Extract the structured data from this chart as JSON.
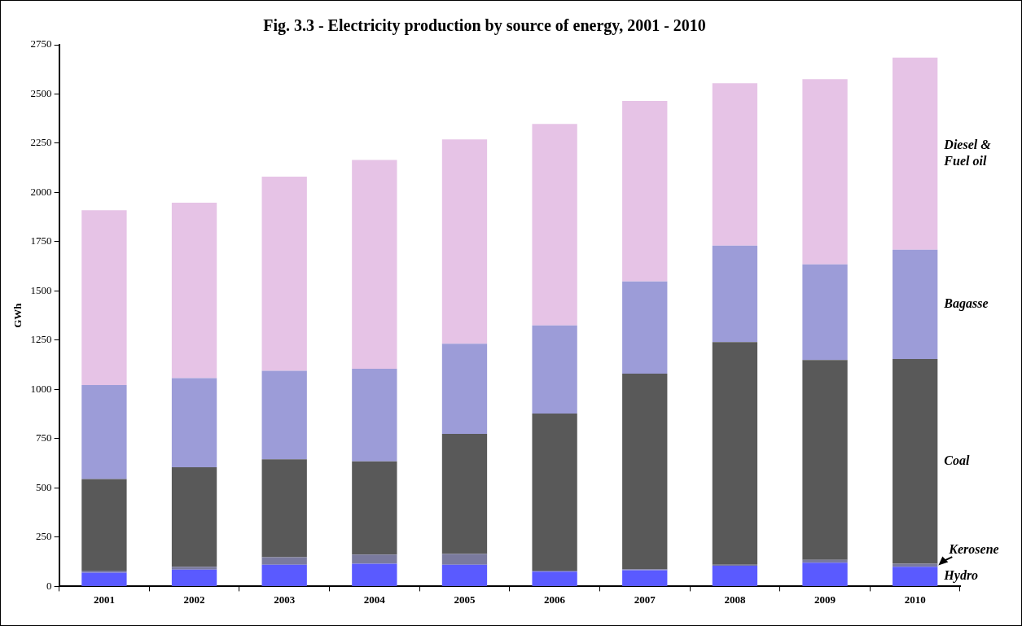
{
  "chart_data": {
    "type": "bar",
    "title": "Fig. 3.3 - Electricity production by source of energy, 2001 - 2010",
    "ylabel": "GWh",
    "categories": [
      "2001",
      "2002",
      "2003",
      "2004",
      "2005",
      "2006",
      "2007",
      "2008",
      "2009",
      "2010"
    ],
    "stacked": true,
    "grid": false,
    "legend": false,
    "ylim": [
      0,
      2750
    ],
    "yticks": [
      0,
      250,
      500,
      750,
      1000,
      1250,
      1500,
      1750,
      2000,
      2250,
      2500,
      2750
    ],
    "series": [
      {
        "name": "Hydro",
        "color": "#5a5aff",
        "values": [
          70,
          85,
          110,
          115,
          110,
          75,
          82,
          105,
          120,
          100
        ]
      },
      {
        "name": "Kerosene",
        "color": "#7a7a9e",
        "values": [
          10,
          15,
          38,
          47,
          55,
          5,
          5,
          5,
          15,
          15
        ]
      },
      {
        "name": "Coal",
        "color": "#595959",
        "values": [
          465,
          505,
          497,
          473,
          610,
          798,
          993,
          1130,
          1015,
          1040
        ]
      },
      {
        "name": "Bagasse",
        "color": "#9c9cd8",
        "values": [
          477,
          453,
          450,
          470,
          457,
          447,
          468,
          490,
          485,
          555
        ]
      },
      {
        "name": "Diesel &\nFuel oil",
        "color": "#e6c3e6",
        "values": [
          888,
          890,
          985,
          1060,
          1038,
          1023,
          917,
          825,
          940,
          975
        ]
      }
    ]
  }
}
